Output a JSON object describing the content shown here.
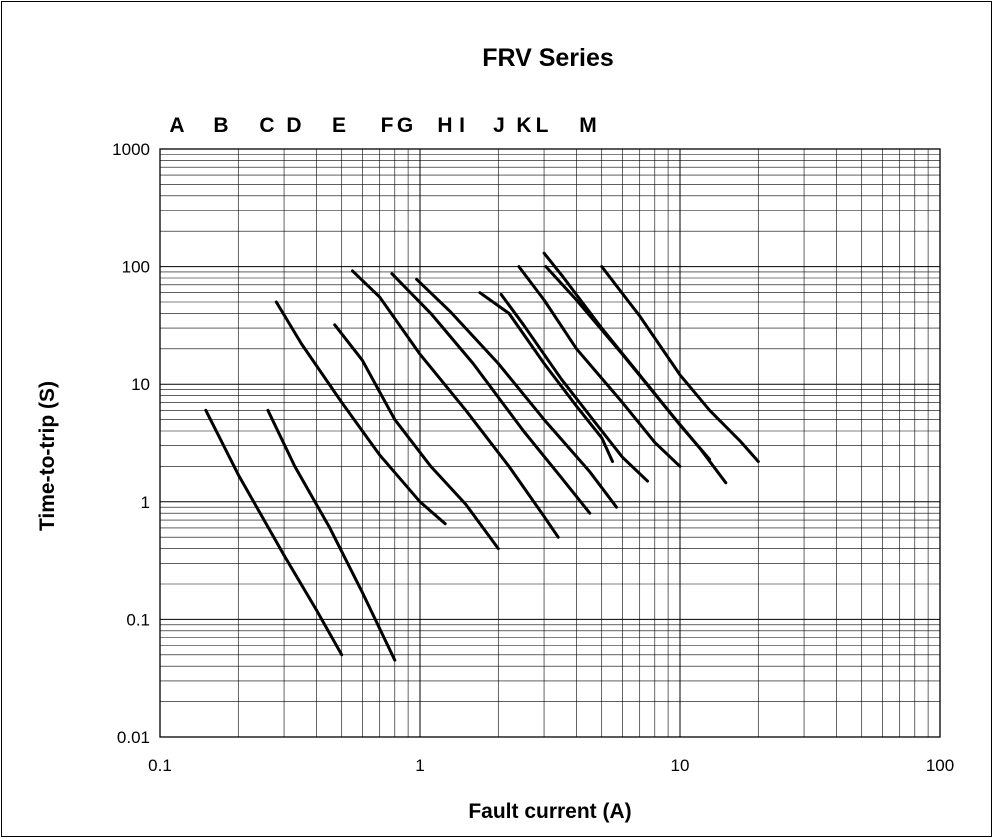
{
  "chart_data": {
    "type": "line",
    "title": "FRV Series",
    "xlabel": "Fault current (A)",
    "ylabel": "Time-to-trip (S)",
    "x_scale": "log",
    "y_scale": "log",
    "xlim": [
      0.1,
      100
    ],
    "ylim": [
      0.01,
      1000
    ],
    "x_ticks": [
      "0.1",
      "1",
      "10",
      "100"
    ],
    "y_ticks": [
      "0.01",
      "0.1",
      "1",
      "10",
      "100",
      "1000"
    ],
    "grid": true,
    "curve_labels": [
      "A",
      "B",
      "C",
      "D",
      "E",
      "F",
      "G",
      "H",
      "I",
      "J",
      "K",
      "L",
      "M"
    ],
    "series": [
      {
        "label": "A",
        "points": [
          [
            0.15,
            6
          ],
          [
            0.2,
            1.7
          ],
          [
            0.3,
            0.35
          ],
          [
            0.4,
            0.12
          ],
          [
            0.5,
            0.05
          ]
        ]
      },
      {
        "label": "B",
        "points": [
          [
            0.26,
            6
          ],
          [
            0.33,
            2
          ],
          [
            0.45,
            0.6
          ],
          [
            0.6,
            0.17
          ],
          [
            0.8,
            0.045
          ]
        ]
      },
      {
        "label": "C",
        "points": [
          [
            0.28,
            50
          ],
          [
            0.35,
            22
          ],
          [
            0.5,
            7
          ],
          [
            0.7,
            2.5
          ],
          [
            1.0,
            1.0
          ],
          [
            1.25,
            0.65
          ]
        ]
      },
      {
        "label": "D",
        "points": [
          [
            0.47,
            32
          ],
          [
            0.6,
            16
          ],
          [
            0.8,
            5
          ],
          [
            1.1,
            2
          ],
          [
            1.5,
            0.95
          ],
          [
            2.0,
            0.4
          ]
        ]
      },
      {
        "label": "E",
        "points": [
          [
            0.55,
            92
          ],
          [
            0.7,
            55
          ],
          [
            1.0,
            18
          ],
          [
            1.5,
            6
          ],
          [
            2.2,
            2
          ],
          [
            3.0,
            0.75
          ],
          [
            3.4,
            0.5
          ]
        ]
      },
      {
        "label": "F",
        "points": [
          [
            0.78,
            87
          ],
          [
            1.1,
            40
          ],
          [
            1.6,
            15
          ],
          [
            2.5,
            4
          ],
          [
            3.5,
            1.6
          ],
          [
            4.5,
            0.8
          ]
        ]
      },
      {
        "label": "G",
        "points": [
          [
            0.97,
            78
          ],
          [
            1.3,
            42
          ],
          [
            2.0,
            15
          ],
          [
            3.0,
            5
          ],
          [
            4.5,
            1.8
          ],
          [
            5.7,
            0.9
          ]
        ]
      },
      {
        "label": "H",
        "points": [
          [
            1.7,
            60
          ],
          [
            2.2,
            40
          ],
          [
            3.0,
            15
          ],
          [
            4.0,
            6.5
          ],
          [
            5.0,
            3.5
          ],
          [
            5.5,
            2.2
          ]
        ]
      },
      {
        "label": "I",
        "points": [
          [
            2.05,
            58
          ],
          [
            2.5,
            32
          ],
          [
            3.5,
            11
          ],
          [
            4.8,
            4.5
          ],
          [
            6.0,
            2.4
          ],
          [
            7.5,
            1.5
          ]
        ]
      },
      {
        "label": "J",
        "points": [
          [
            2.4,
            100
          ],
          [
            3.0,
            52
          ],
          [
            4.0,
            20
          ],
          [
            6.0,
            7
          ],
          [
            8.0,
            3.2
          ],
          [
            10.0,
            2.0
          ]
        ]
      },
      {
        "label": "K",
        "points": [
          [
            3.0,
            130
          ],
          [
            3.5,
            85
          ],
          [
            5.0,
            30
          ],
          [
            7.0,
            12
          ],
          [
            10.0,
            4.5
          ],
          [
            13.0,
            2.3
          ]
        ]
      },
      {
        "label": "L",
        "points": [
          [
            3.05,
            100
          ],
          [
            4.0,
            52
          ],
          [
            6.0,
            18
          ],
          [
            9.0,
            6
          ],
          [
            12.0,
            2.8
          ],
          [
            15.0,
            1.45
          ]
        ]
      },
      {
        "label": "M",
        "points": [
          [
            5.0,
            100
          ],
          [
            7.0,
            38
          ],
          [
            10.0,
            12
          ],
          [
            13.0,
            6
          ],
          [
            17.0,
            3.3
          ],
          [
            20.0,
            2.2
          ]
        ]
      }
    ]
  }
}
